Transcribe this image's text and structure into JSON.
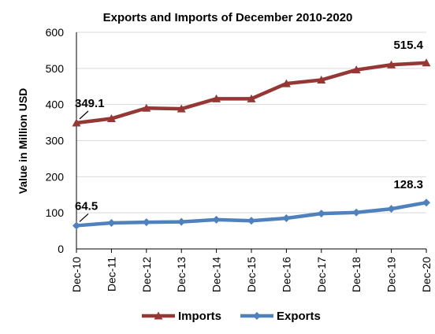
{
  "chart_data": {
    "type": "line",
    "title": "Exports and Imports of December 2010-2020",
    "xlabel": "",
    "ylabel": "Value in Million USD",
    "ylim": [
      0,
      600
    ],
    "yticks": [
      0,
      100,
      200,
      300,
      400,
      500,
      600
    ],
    "grid": true,
    "legend_position": "bottom",
    "categories": [
      "Dec-10",
      "Dec-11",
      "Dec-12",
      "Dec-13",
      "Dec-14",
      "Dec-15",
      "Dec-16",
      "Dec-17",
      "Dec-18",
      "Dec-19",
      "Dec-20"
    ],
    "series": [
      {
        "name": "Imports",
        "color": "#953735",
        "marker": "triangle",
        "values": [
          349.1,
          361,
          390,
          388,
          416,
          416,
          458,
          468,
          496,
          510,
          515.4
        ]
      },
      {
        "name": "Exports",
        "color": "#4F81BD",
        "marker": "diamond",
        "values": [
          64.5,
          72,
          74,
          75,
          81,
          78,
          85,
          98,
          101,
          111,
          128.3
        ]
      }
    ],
    "annotations": [
      {
        "series": 0,
        "index": 0,
        "text": "349.1"
      },
      {
        "series": 0,
        "index": 10,
        "text": "515.4"
      },
      {
        "series": 1,
        "index": 0,
        "text": "64.5"
      },
      {
        "series": 1,
        "index": 10,
        "text": "128.3"
      }
    ]
  }
}
